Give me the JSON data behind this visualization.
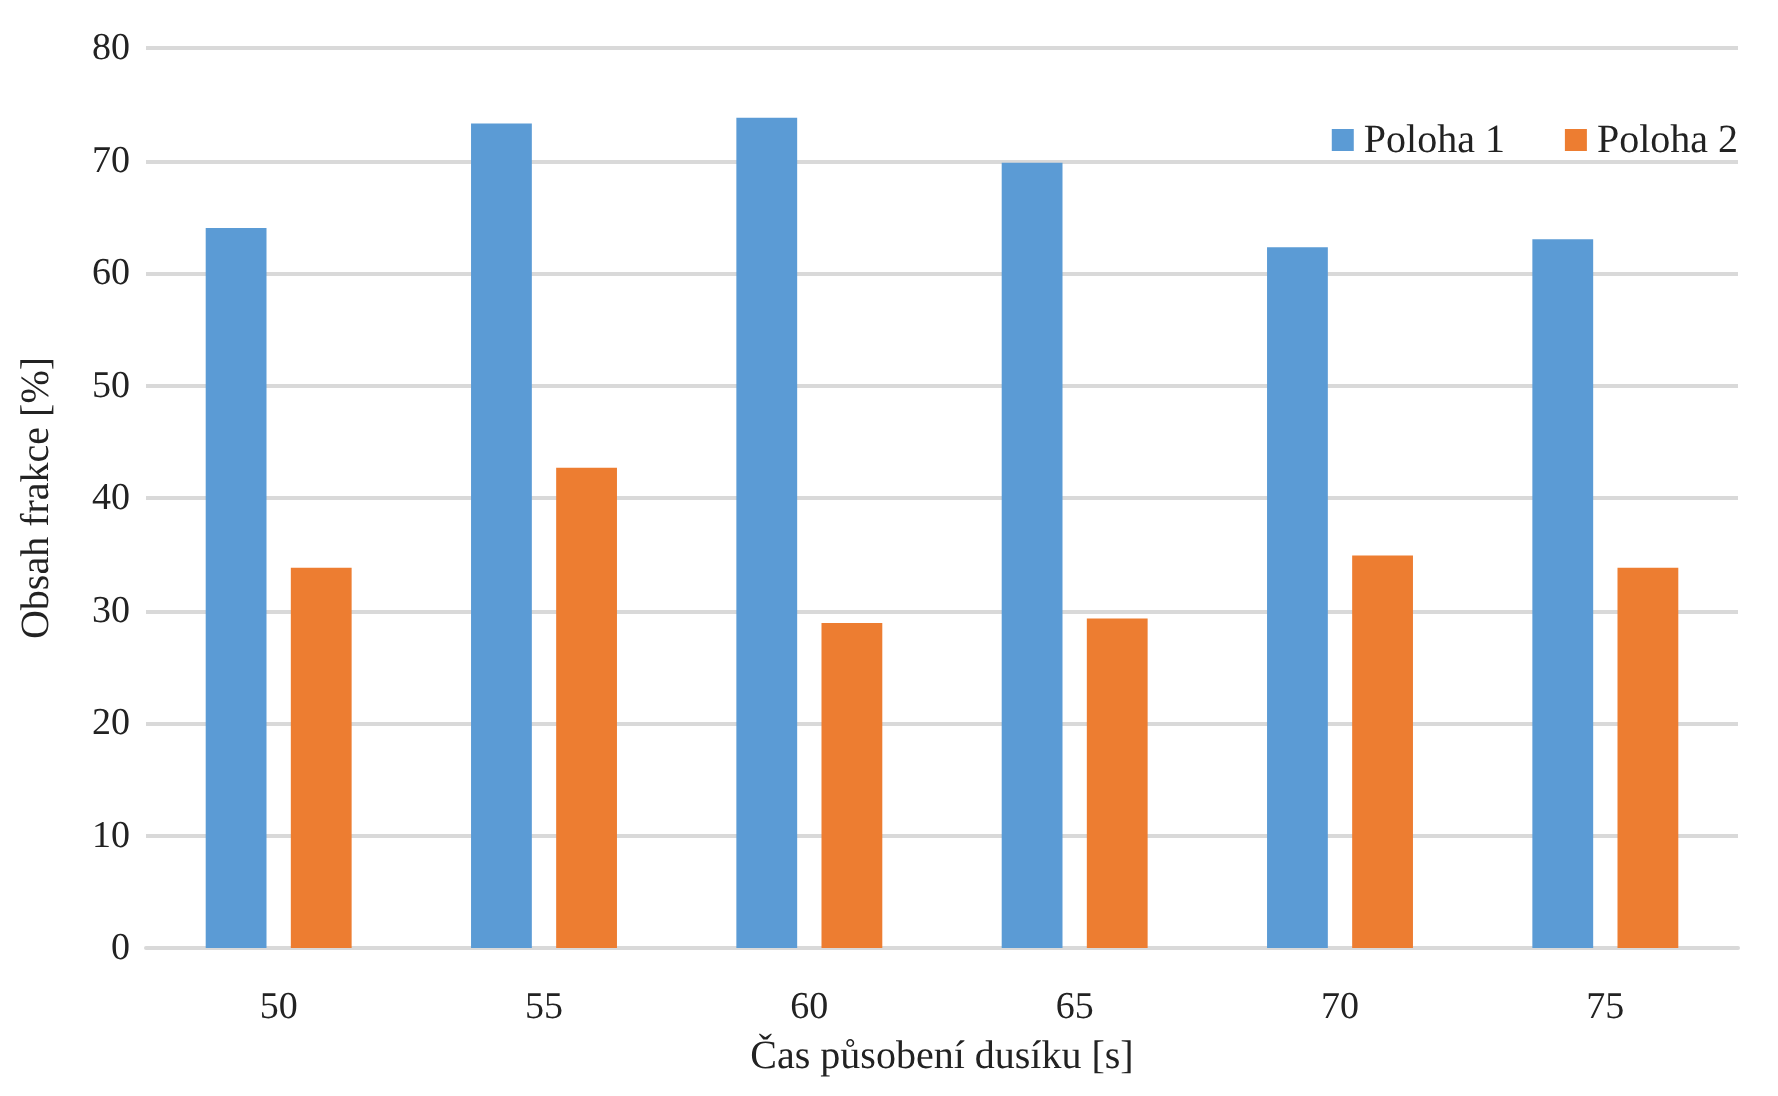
{
  "chart_data": {
    "type": "bar",
    "xlabel": "Čas působení dusíku [s]",
    "ylabel": "Obsah frakce [%]",
    "categories": [
      "50",
      "55",
      "60",
      "65",
      "70",
      "75"
    ],
    "series": [
      {
        "name": "Poloha 1",
        "color": "#5b9bd5",
        "values": [
          64.0,
          73.3,
          73.8,
          69.8,
          62.3,
          63.0
        ]
      },
      {
        "name": "Poloha 2",
        "color": "#ed7d31",
        "values": [
          33.8,
          42.7,
          28.9,
          29.3,
          34.9,
          33.8
        ]
      }
    ],
    "ylim": [
      0,
      80
    ],
    "yticks": [
      0,
      10,
      20,
      30,
      40,
      50,
      60,
      70,
      80
    ],
    "grid": "y",
    "legend": "top right"
  }
}
